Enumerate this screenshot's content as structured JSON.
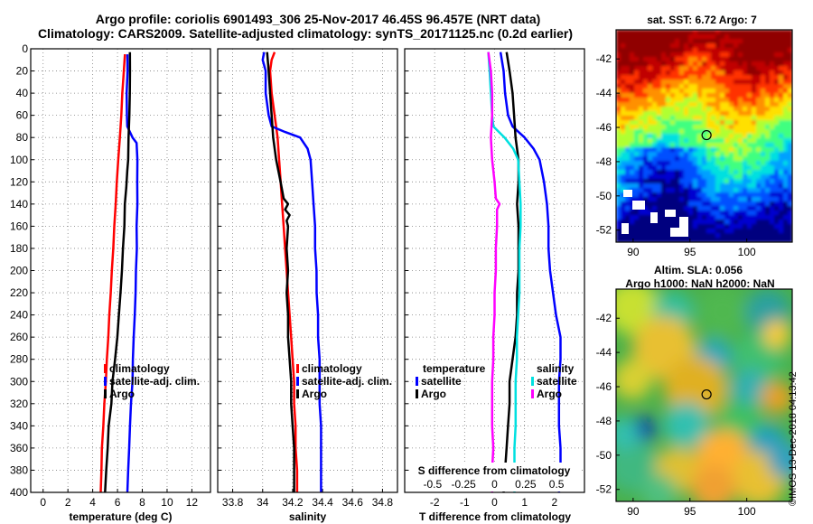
{
  "title_line1": "Argo profile: coriolis 6901493_306 25-Nov-2017 46.45S 96.457E (NRT data)",
  "title_line2": "Climatology: CARS2009. Satellite-adjusted climatology: synTS_20171125.nc (0.2d earlier)",
  "credit": "©IMOS 13-Dec-2018 04:13:42",
  "colors": {
    "climatology": "#ff0000",
    "satellite": "#0000ff",
    "argo": "#000000",
    "sal_sat": "#00e0e0",
    "sal_argo": "#ff00ff",
    "grid": "#808080"
  },
  "chart_data": [
    {
      "type": "line",
      "name": "temperature-profile",
      "xlabel": "temperature (deg C)",
      "xlim": [
        -1,
        13.5
      ],
      "ylim": [
        0,
        400
      ],
      "x_ticks": [
        0,
        2,
        4,
        6,
        8,
        10,
        12
      ],
      "x_tick_labels": [
        "0",
        "2",
        "4",
        "6",
        "8",
        "10",
        "12"
      ],
      "y_ticks": [
        0,
        20,
        40,
        60,
        80,
        100,
        120,
        140,
        160,
        180,
        200,
        220,
        240,
        260,
        280,
        300,
        320,
        340,
        360,
        380,
        400
      ],
      "y_tick_labels": [
        "0",
        "20",
        "40",
        "60",
        "80",
        "100",
        "120",
        "140",
        "160",
        "180",
        "200",
        "220",
        "240",
        "260",
        "280",
        "300",
        "320",
        "340",
        "360",
        "380",
        "400"
      ],
      "legend": [
        "climatology",
        "satellite-adj. clim.",
        "Argo"
      ],
      "series": [
        {
          "name": "climatology",
          "color": "#ff0000",
          "depth": [
            5,
            20,
            40,
            60,
            80,
            100,
            120,
            140,
            160,
            180,
            200,
            220,
            240,
            260,
            280,
            300,
            320,
            340,
            360,
            380,
            400
          ],
          "values": [
            6.6,
            6.5,
            6.4,
            6.3,
            6.2,
            6.05,
            5.95,
            5.85,
            5.75,
            5.65,
            5.55,
            5.45,
            5.35,
            5.25,
            5.15,
            5.05,
            4.95,
            4.85,
            4.75,
            4.7,
            4.65
          ]
        },
        {
          "name": "satellite-adj. clim.",
          "color": "#0000ff",
          "depth": [
            5,
            20,
            40,
            60,
            70,
            80,
            85,
            100,
            120,
            140,
            160,
            180,
            200,
            220,
            240,
            260,
            280,
            300,
            320,
            340,
            360,
            380,
            400
          ],
          "values": [
            6.8,
            6.8,
            6.75,
            6.75,
            6.8,
            7.2,
            7.55,
            7.6,
            7.6,
            7.6,
            7.55,
            7.55,
            7.5,
            7.45,
            7.4,
            7.3,
            7.25,
            7.2,
            7.1,
            7.0,
            6.95,
            6.85,
            6.8
          ]
        },
        {
          "name": "Argo",
          "color": "#000000",
          "depth": [
            3,
            20,
            40,
            60,
            80,
            100,
            110,
            125,
            140,
            160,
            180,
            200,
            220,
            240,
            260,
            280,
            300,
            320,
            340,
            360,
            380,
            400
          ],
          "values": [
            7.0,
            7.0,
            7.0,
            6.95,
            6.9,
            6.85,
            6.8,
            6.7,
            6.6,
            6.55,
            6.45,
            6.35,
            6.25,
            6.1,
            6.0,
            5.8,
            5.6,
            5.5,
            5.3,
            5.2,
            5.1,
            5.0
          ]
        }
      ]
    },
    {
      "type": "line",
      "name": "salinity-profile",
      "xlabel": "salinity",
      "xlim": [
        33.7,
        34.9
      ],
      "ylim": [
        0,
        400
      ],
      "x_ticks": [
        33.8,
        34.0,
        34.2,
        34.4,
        34.6,
        34.8
      ],
      "x_tick_labels": [
        "33.8",
        "34",
        "34.2",
        "34.4",
        "34.6",
        "34.8"
      ],
      "legend": [
        "climatology",
        "satellite-adj. clim.",
        "Argo"
      ],
      "series": [
        {
          "name": "climatology",
          "color": "#ff0000",
          "depth": [
            3,
            10,
            20,
            40,
            60,
            80,
            100,
            120,
            140,
            160,
            180,
            200,
            220,
            240,
            260,
            280,
            300,
            320,
            340,
            360,
            380,
            400
          ],
          "values": [
            34.08,
            34.06,
            34.05,
            34.06,
            34.08,
            34.1,
            34.11,
            34.12,
            34.13,
            34.14,
            34.15,
            34.16,
            34.17,
            34.18,
            34.19,
            34.2,
            34.21,
            34.21,
            34.22,
            34.22,
            34.23,
            34.23
          ]
        },
        {
          "name": "satellite-adj. clim.",
          "color": "#0000ff",
          "depth": [
            3,
            10,
            20,
            40,
            60,
            70,
            75,
            80,
            90,
            100,
            120,
            140,
            160,
            180,
            200,
            220,
            240,
            260,
            280,
            300,
            320,
            340,
            360,
            380,
            400
          ],
          "values": [
            34.01,
            34.0,
            34.02,
            34.02,
            34.04,
            34.06,
            34.15,
            34.25,
            34.3,
            34.32,
            34.33,
            34.34,
            34.35,
            34.35,
            34.36,
            34.36,
            34.37,
            34.37,
            34.38,
            34.38,
            34.38,
            34.39,
            34.39,
            34.39,
            34.39
          ]
        },
        {
          "name": "Argo",
          "color": "#000000",
          "depth": [
            3,
            20,
            40,
            60,
            80,
            100,
            120,
            135,
            140,
            145,
            150,
            155,
            160,
            180,
            200,
            220,
            240,
            260,
            280,
            300,
            320,
            340,
            360,
            380,
            400
          ],
          "values": [
            34.03,
            34.04,
            34.05,
            34.06,
            34.07,
            34.09,
            34.12,
            34.14,
            34.17,
            34.15,
            34.18,
            34.16,
            34.17,
            34.16,
            34.17,
            34.16,
            34.17,
            34.17,
            34.18,
            34.19,
            34.19,
            34.2,
            34.21,
            34.21,
            34.21
          ]
        }
      ]
    },
    {
      "type": "line",
      "name": "difference-profile",
      "xlabel": "T difference from climatology",
      "top_xlabel": "S difference from climatology",
      "xlim": [
        -3,
        3
      ],
      "ylim": [
        0,
        400
      ],
      "x_ticks": [
        -2,
        -1,
        0,
        1,
        2
      ],
      "x_tick_labels": [
        "-2",
        "-1",
        "0",
        "1",
        "2"
      ],
      "top_ticks": [
        -0.5,
        -0.25,
        0,
        0.25,
        0.5
      ],
      "top_tick_labels": [
        "-0.5",
        "-0.25",
        "0",
        "0.25",
        "0.5"
      ],
      "legend_temperature": {
        "title": "temperature",
        "entries": [
          "satellite",
          "Argo"
        ]
      },
      "legend_salinity": {
        "title": "salinity",
        "entries": [
          "satellite",
          "Argo"
        ]
      },
      "series": [
        {
          "name": "T satellite",
          "color": "#0000ff",
          "depth": [
            3,
            20,
            40,
            60,
            70,
            80,
            90,
            100,
            120,
            140,
            160,
            180,
            200,
            220,
            240,
            260,
            280,
            300,
            320,
            340,
            360,
            380,
            400
          ],
          "values": [
            0.2,
            0.3,
            0.35,
            0.45,
            0.6,
            1.0,
            1.3,
            1.5,
            1.65,
            1.75,
            1.8,
            1.8,
            1.85,
            1.95,
            2.05,
            2.2,
            2.2,
            2.15,
            2.15,
            2.15,
            2.2,
            2.2,
            2.15
          ]
        },
        {
          "name": "T Argo",
          "color": "#000000",
          "depth": [
            3,
            20,
            40,
            60,
            80,
            100,
            120,
            140,
            160,
            180,
            200,
            220,
            240,
            260,
            280,
            300,
            320,
            340,
            360,
            380,
            400
          ],
          "values": [
            0.4,
            0.5,
            0.6,
            0.65,
            0.7,
            0.8,
            0.8,
            0.75,
            0.8,
            0.8,
            0.8,
            0.75,
            0.75,
            0.7,
            0.6,
            0.5,
            0.5,
            0.45,
            0.4,
            0.35,
            0.3
          ]
        },
        {
          "name": "S satellite",
          "color": "#00e0e0",
          "depth": [
            3,
            20,
            40,
            60,
            70,
            80,
            90,
            100,
            120,
            140,
            160,
            180,
            200,
            220,
            240,
            260,
            280,
            300,
            320,
            340,
            360,
            380,
            400
          ],
          "values": [
            -0.05,
            -0.04,
            -0.03,
            -0.02,
            -0.01,
            0.08,
            0.15,
            0.19,
            0.2,
            0.21,
            0.21,
            0.2,
            0.2,
            0.2,
            0.19,
            0.18,
            0.18,
            0.17,
            0.17,
            0.17,
            0.16,
            0.16,
            0.16
          ]
        },
        {
          "name": "S Argo",
          "color": "#ff00ff",
          "depth": [
            3,
            20,
            40,
            60,
            80,
            100,
            120,
            135,
            140,
            145,
            160,
            180,
            200,
            220,
            240,
            260,
            280,
            300,
            320,
            340,
            360,
            380,
            400
          ],
          "values": [
            -0.05,
            -0.03,
            -0.02,
            -0.02,
            -0.03,
            -0.02,
            0.0,
            0.01,
            0.04,
            0.02,
            0.02,
            0.01,
            0.01,
            0.0,
            0.0,
            -0.01,
            -0.01,
            -0.02,
            -0.02,
            -0.02,
            -0.01,
            -0.02,
            -0.02
          ]
        }
      ]
    },
    {
      "type": "heatmap",
      "name": "sst-map",
      "title": "sat. SST: 6.72 Argo: 7",
      "xlim": [
        88.5,
        104
      ],
      "ylim": [
        -52.7,
        -40.3
      ],
      "x_ticks": [
        90,
        95,
        100
      ],
      "x_tick_labels": [
        "90",
        "95",
        "100"
      ],
      "y_ticks": [
        -42,
        -44,
        -46,
        -48,
        -50,
        -52
      ],
      "y_tick_labels": [
        "-42",
        "-44",
        "-46",
        "-48",
        "-50",
        "-52"
      ],
      "marker": {
        "lon": 96.46,
        "lat": -46.45
      }
    },
    {
      "type": "heatmap",
      "name": "sla-map",
      "title": "Altim. SLA: 0.056",
      "subtitle": "Argo h1000: NaN h2000: NaN",
      "xlim": [
        88.5,
        104
      ],
      "ylim": [
        -52.7,
        -40.3
      ],
      "x_ticks": [
        90,
        95,
        100
      ],
      "x_tick_labels": [
        "90",
        "95",
        "100"
      ],
      "y_ticks": [
        -42,
        -44,
        -46,
        -48,
        -50,
        -52
      ],
      "y_tick_labels": [
        "-42",
        "-44",
        "-46",
        "-48",
        "-50",
        "-52"
      ],
      "marker": {
        "lon": 96.46,
        "lat": -46.45
      }
    }
  ]
}
